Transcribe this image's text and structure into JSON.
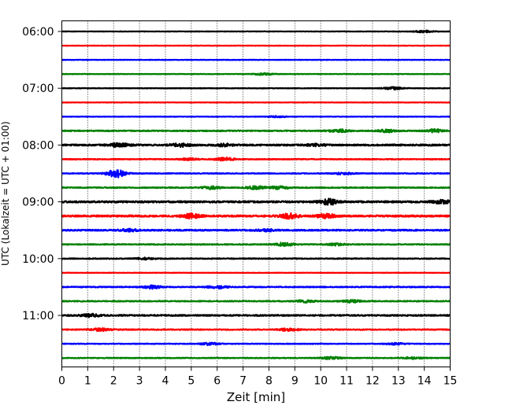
{
  "chart_data": {
    "type": "line",
    "title": "",
    "xlabel": "Zeit  [min]",
    "ylabel": "UTC (Lokalzeit = UTC + 01:00)",
    "xlim": [
      0,
      15
    ],
    "x_ticks": [
      "0",
      "1",
      "2",
      "3",
      "4",
      "5",
      "6",
      "7",
      "8",
      "9",
      "10",
      "11",
      "12",
      "13",
      "14",
      "15"
    ],
    "y_tick_labels": [
      "06:00",
      "07:00",
      "08:00",
      "09:00",
      "10:00",
      "11:00"
    ],
    "x_grid": true,
    "y_grid": false,
    "legend": "none",
    "trace_colors": [
      "#000000",
      "#ff0000",
      "#0000ff",
      "#008000"
    ],
    "traces": [
      {
        "start": "06:00",
        "noise": 0.25,
        "events": [
          {
            "t": 14.0,
            "a": 1.2
          }
        ]
      },
      {
        "start": "06:15",
        "noise": 0.25,
        "events": []
      },
      {
        "start": "06:30",
        "noise": 0.28,
        "events": []
      },
      {
        "start": "06:45",
        "noise": 0.3,
        "events": [
          {
            "t": 7.8,
            "a": 1.2
          }
        ]
      },
      {
        "start": "07:00",
        "noise": 0.3,
        "events": [
          {
            "t": 12.8,
            "a": 1.5
          }
        ]
      },
      {
        "start": "07:15",
        "noise": 0.25,
        "events": []
      },
      {
        "start": "07:30",
        "noise": 0.3,
        "events": [
          {
            "t": 8.3,
            "a": 0.8
          }
        ]
      },
      {
        "start": "07:45",
        "noise": 0.6,
        "events": [
          {
            "t": 10.7,
            "a": 1.8
          },
          {
            "t": 12.6,
            "a": 1.6
          },
          {
            "t": 14.4,
            "a": 1.8
          }
        ]
      },
      {
        "start": "08:00",
        "noise": 0.9,
        "events": [
          {
            "t": 2.2,
            "a": 2.2
          },
          {
            "t": 4.6,
            "a": 1.8
          },
          {
            "t": 6.3,
            "a": 1.4
          },
          {
            "t": 9.8,
            "a": 1.2
          }
        ]
      },
      {
        "start": "08:15",
        "noise": 0.5,
        "events": [
          {
            "t": 6.3,
            "a": 2.0
          },
          {
            "t": 4.9,
            "a": 1.2
          }
        ]
      },
      {
        "start": "08:30",
        "noise": 0.45,
        "events": [
          {
            "t": 2.1,
            "a": 5.0
          },
          {
            "t": 10.9,
            "a": 1.4
          }
        ]
      },
      {
        "start": "08:45",
        "noise": 0.55,
        "events": [
          {
            "t": 5.8,
            "a": 1.6
          },
          {
            "t": 7.5,
            "a": 2.0
          },
          {
            "t": 8.4,
            "a": 1.8
          }
        ]
      },
      {
        "start": "09:00",
        "noise": 1.0,
        "events": [
          {
            "t": 10.3,
            "a": 3.5
          },
          {
            "t": 14.7,
            "a": 1.8
          }
        ]
      },
      {
        "start": "09:15",
        "noise": 1.0,
        "events": [
          {
            "t": 5.0,
            "a": 2.6
          },
          {
            "t": 8.8,
            "a": 3.0
          },
          {
            "t": 10.2,
            "a": 2.4
          }
        ]
      },
      {
        "start": "09:30",
        "noise": 0.8,
        "events": [
          {
            "t": 2.6,
            "a": 1.4
          },
          {
            "t": 7.9,
            "a": 1.2
          }
        ]
      },
      {
        "start": "09:45",
        "noise": 0.55,
        "events": [
          {
            "t": 8.6,
            "a": 2.0
          },
          {
            "t": 10.6,
            "a": 1.2
          }
        ]
      },
      {
        "start": "10:00",
        "noise": 0.5,
        "events": [
          {
            "t": 3.2,
            "a": 1.0
          }
        ]
      },
      {
        "start": "10:15",
        "noise": 0.25,
        "events": []
      },
      {
        "start": "10:30",
        "noise": 0.55,
        "events": [
          {
            "t": 3.5,
            "a": 1.8
          },
          {
            "t": 6.0,
            "a": 1.8
          }
        ]
      },
      {
        "start": "10:45",
        "noise": 0.55,
        "events": [
          {
            "t": 9.4,
            "a": 1.6
          },
          {
            "t": 11.2,
            "a": 1.4
          }
        ]
      },
      {
        "start": "11:00",
        "noise": 0.75,
        "events": [
          {
            "t": 1.1,
            "a": 1.6
          }
        ]
      },
      {
        "start": "11:15",
        "noise": 0.55,
        "events": [
          {
            "t": 1.5,
            "a": 1.6
          },
          {
            "t": 8.8,
            "a": 1.8
          }
        ]
      },
      {
        "start": "11:30",
        "noise": 0.4,
        "events": [
          {
            "t": 5.7,
            "a": 1.4
          },
          {
            "t": 12.9,
            "a": 1.0
          }
        ]
      },
      {
        "start": "11:45",
        "noise": 0.45,
        "events": [
          {
            "t": 10.4,
            "a": 1.4
          },
          {
            "t": 13.6,
            "a": 1.2
          }
        ]
      }
    ]
  }
}
